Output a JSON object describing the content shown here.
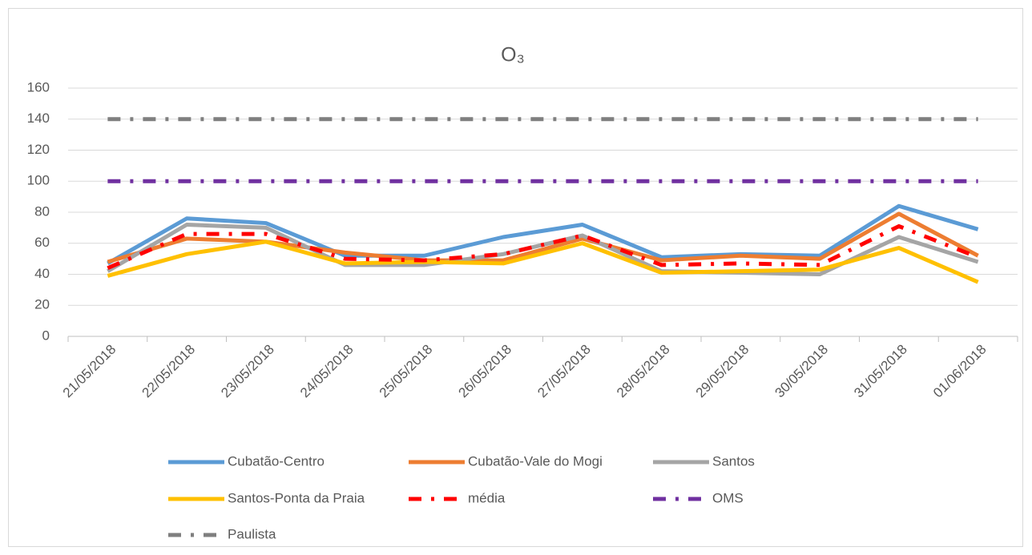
{
  "chart_data": {
    "type": "line",
    "title": "O₃",
    "categories": [
      "21/05/2018",
      "22/05/2018",
      "23/05/2018",
      "24/05/2018",
      "25/05/2018",
      "26/05/2018",
      "27/05/2018",
      "28/05/2018",
      "29/05/2018",
      "30/05/2018",
      "31/05/2018",
      "01/06/2018"
    ],
    "series": [
      {
        "name": "Cubatão-Centro",
        "color": "#5b9bd5",
        "line_style": "solid",
        "values": [
          47,
          76,
          73,
          52,
          52,
          64,
          72,
          51,
          53,
          52,
          84,
          69
        ]
      },
      {
        "name": "Cubatão-Vale do Mogi",
        "color": "#ed7d31",
        "line_style": "solid",
        "values": [
          48,
          63,
          61,
          54,
          49,
          49,
          63,
          49,
          52,
          50,
          79,
          52
        ]
      },
      {
        "name": "Santos",
        "color": "#a5a5a5",
        "line_style": "solid",
        "values": [
          42,
          72,
          70,
          46,
          46,
          53,
          65,
          42,
          41,
          40,
          64,
          48
        ]
      },
      {
        "name": "Santos-Ponta da Praia",
        "color": "#ffc000",
        "line_style": "solid",
        "values": [
          39,
          53,
          61,
          47,
          48,
          47,
          60,
          41,
          42,
          43,
          57,
          35
        ]
      },
      {
        "name": "média",
        "color": "#ff0000",
        "line_style": "dash-dot",
        "values": [
          44,
          66,
          66,
          50,
          49,
          53,
          65,
          46,
          47,
          46,
          71,
          51
        ]
      },
      {
        "name": "OMS",
        "color": "#7030a0",
        "line_style": "dash-dot",
        "values": [
          100,
          100,
          100,
          100,
          100,
          100,
          100,
          100,
          100,
          100,
          100,
          100
        ]
      },
      {
        "name": "Paulista",
        "color": "#7f7f7f",
        "line_style": "dash-dot",
        "values": [
          140,
          140,
          140,
          140,
          140,
          140,
          140,
          140,
          140,
          140,
          140,
          140
        ]
      }
    ],
    "ylim": [
      0,
      160
    ],
    "yticks": [
      0,
      20,
      40,
      60,
      80,
      100,
      120,
      140,
      160
    ],
    "grid": true,
    "legend": "bottom"
  }
}
